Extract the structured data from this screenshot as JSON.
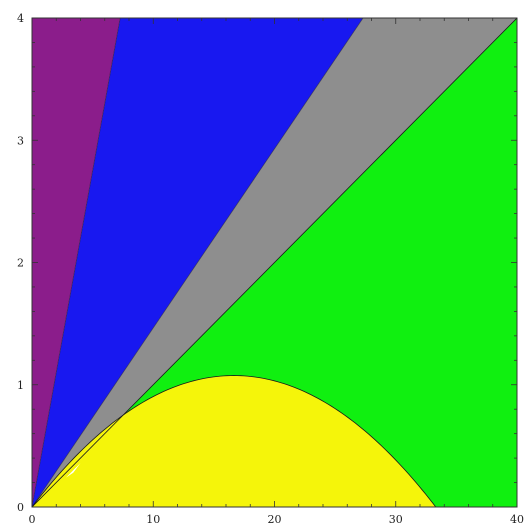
{
  "chart_data": {
    "type": "region-plot",
    "xlim": [
      0,
      40
    ],
    "ylim": [
      0,
      4
    ],
    "x_ticks": [
      {
        "value": 0,
        "label": "0"
      },
      {
        "value": 10,
        "label": "10"
      },
      {
        "value": 20,
        "label": "20"
      },
      {
        "value": 30,
        "label": "30"
      },
      {
        "value": 40,
        "label": "40"
      }
    ],
    "y_ticks": [
      {
        "value": 0,
        "label": "0"
      },
      {
        "value": 1,
        "label": "1"
      },
      {
        "value": 2,
        "label": "2"
      },
      {
        "value": 3,
        "label": "3"
      },
      {
        "value": 4,
        "label": "4"
      }
    ],
    "grid": false,
    "regions": [
      {
        "name": "purple",
        "color": "#8b1d8b",
        "lower_slope": 0.55,
        "upper_edge": "y-axis"
      },
      {
        "name": "blue",
        "color": "#1818f0",
        "lower_slope": 0.1465,
        "upper_slope": 0.55
      },
      {
        "name": "gray",
        "color": "#8e8e8e",
        "lower_slope": 0.1,
        "upper_slope": 0.1465
      },
      {
        "name": "green",
        "color": "#10f010",
        "lower_boundary": "max(parabola, 0)",
        "upper_slope": 0.1
      },
      {
        "name": "yellow",
        "color": "#f5f50a",
        "boundary": "parabola",
        "peak_x": 19.2,
        "peak_y": 1.05,
        "x_intercept": 33.3
      }
    ]
  }
}
